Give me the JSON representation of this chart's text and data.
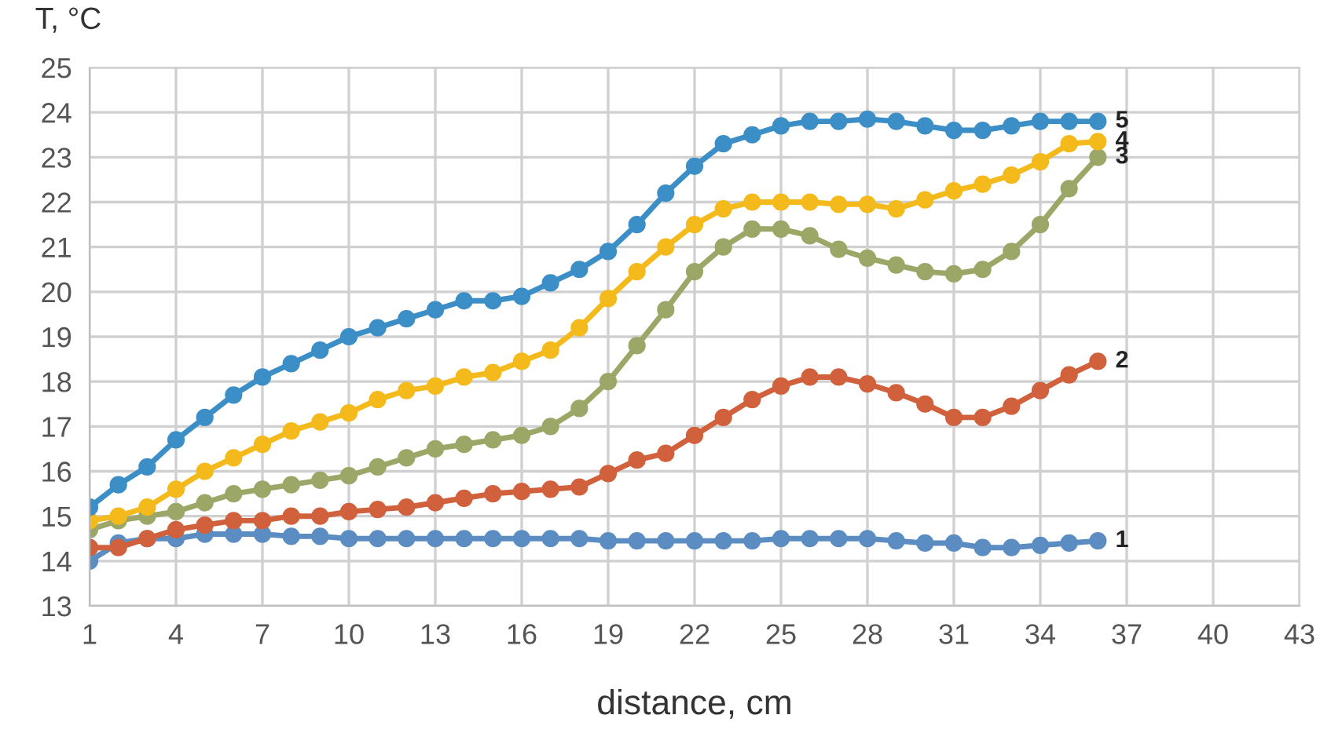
{
  "chart_data": {
    "type": "line",
    "xlabel": "distance, cm",
    "ylabel": "T, °C",
    "x": [
      1,
      2,
      3,
      4,
      5,
      6,
      7,
      8,
      9,
      10,
      11,
      12,
      13,
      14,
      15,
      16,
      17,
      18,
      19,
      20,
      21,
      22,
      23,
      24,
      25,
      26,
      27,
      28,
      29,
      30,
      31,
      32,
      33,
      34,
      35,
      36
    ],
    "xlim": [
      1,
      43
    ],
    "xticks": [
      1,
      4,
      7,
      10,
      13,
      16,
      19,
      22,
      25,
      28,
      31,
      34,
      37,
      40,
      43
    ],
    "ylim": [
      13,
      25
    ],
    "yticks": [
      13,
      14,
      15,
      16,
      17,
      18,
      19,
      20,
      21,
      22,
      23,
      24,
      25
    ],
    "grid": true,
    "marker": "circle",
    "line_style": "solid",
    "series": [
      {
        "name": "1",
        "color": "#5b8dc2",
        "values": [
          14.0,
          14.4,
          14.5,
          14.5,
          14.6,
          14.6,
          14.6,
          14.55,
          14.55,
          14.5,
          14.5,
          14.5,
          14.5,
          14.5,
          14.5,
          14.5,
          14.5,
          14.5,
          14.45,
          14.45,
          14.45,
          14.45,
          14.45,
          14.45,
          14.5,
          14.5,
          14.5,
          14.5,
          14.45,
          14.4,
          14.4,
          14.3,
          14.3,
          14.35,
          14.4,
          14.45
        ]
      },
      {
        "name": "2",
        "color": "#d0613c",
        "values": [
          14.3,
          14.3,
          14.5,
          14.7,
          14.8,
          14.9,
          14.9,
          15.0,
          15.0,
          15.1,
          15.15,
          15.2,
          15.3,
          15.4,
          15.5,
          15.55,
          15.6,
          15.65,
          15.95,
          16.25,
          16.4,
          16.8,
          17.2,
          17.6,
          17.9,
          18.1,
          18.1,
          17.95,
          17.75,
          17.5,
          17.2,
          17.2,
          17.45,
          17.8,
          18.15,
          18.45
        ]
      },
      {
        "name": "3",
        "color": "#9aa767",
        "values": [
          14.7,
          14.9,
          15.0,
          15.1,
          15.3,
          15.5,
          15.6,
          15.7,
          15.8,
          15.9,
          16.1,
          16.3,
          16.5,
          16.6,
          16.7,
          16.8,
          17.0,
          17.4,
          18.0,
          18.8,
          19.6,
          20.45,
          21.0,
          21.4,
          21.4,
          21.25,
          20.95,
          20.75,
          20.6,
          20.45,
          20.4,
          20.5,
          20.9,
          21.5,
          22.3,
          23.0
        ]
      },
      {
        "name": "4",
        "color": "#f4ba1b",
        "values": [
          14.9,
          15.0,
          15.2,
          15.6,
          16.0,
          16.3,
          16.6,
          16.9,
          17.1,
          17.3,
          17.6,
          17.8,
          17.9,
          18.1,
          18.2,
          18.45,
          18.7,
          19.2,
          19.85,
          20.45,
          21.0,
          21.5,
          21.85,
          22.0,
          22.0,
          22.0,
          21.95,
          21.95,
          21.85,
          22.05,
          22.25,
          22.4,
          22.6,
          22.9,
          23.3,
          23.35
        ]
      },
      {
        "name": "5",
        "color": "#3b8ec6",
        "values": [
          15.2,
          15.7,
          16.1,
          16.7,
          17.2,
          17.7,
          18.1,
          18.4,
          18.7,
          19.0,
          19.2,
          19.4,
          19.6,
          19.8,
          19.8,
          19.9,
          20.2,
          20.5,
          20.9,
          21.5,
          22.2,
          22.8,
          23.3,
          23.5,
          23.7,
          23.8,
          23.8,
          23.85,
          23.8,
          23.7,
          23.6,
          23.6,
          23.7,
          23.8,
          23.8,
          23.8
        ]
      }
    ]
  }
}
